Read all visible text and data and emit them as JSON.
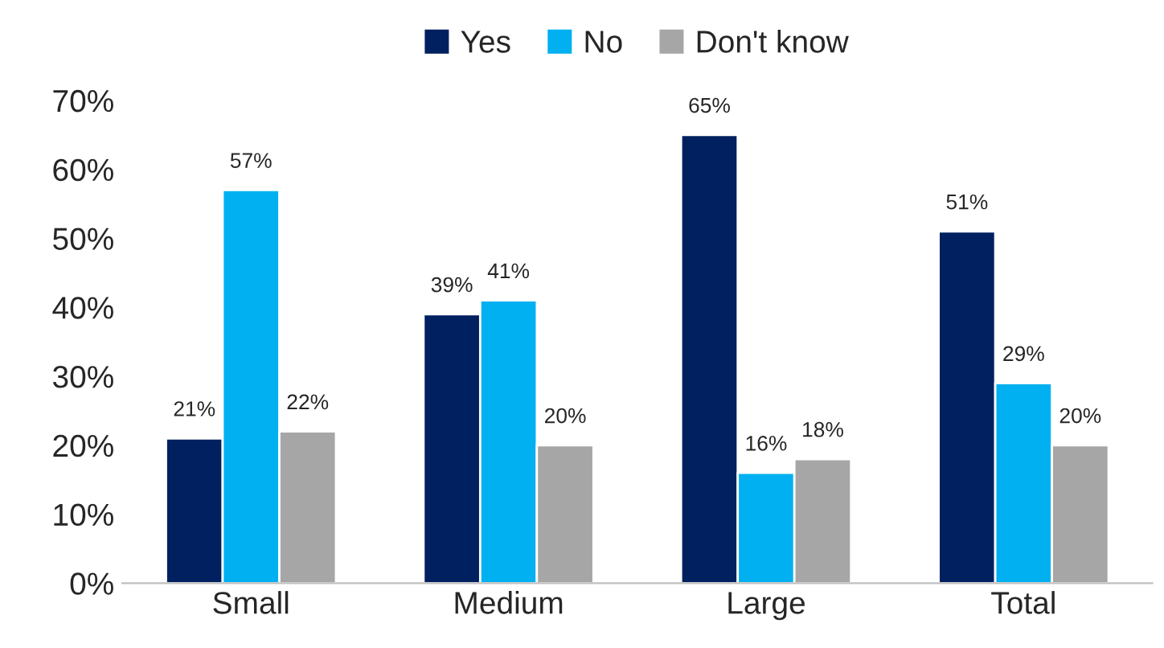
{
  "chart_data": {
    "type": "bar",
    "categories": [
      "Small",
      "Medium",
      "Large",
      "Total"
    ],
    "series": [
      {
        "name": "Yes",
        "color": "#002060",
        "values": [
          21,
          39,
          65,
          51
        ],
        "value_labels": [
          "21%",
          "39%",
          "65%",
          "51%"
        ]
      },
      {
        "name": "No",
        "color": "#00b0f0",
        "values": [
          57,
          41,
          16,
          29
        ],
        "value_labels": [
          "57%",
          "41%",
          "16%",
          "29%"
        ]
      },
      {
        "name": "Don't know",
        "color": "#a6a6a6",
        "values": [
          22,
          20,
          18,
          20
        ],
        "value_labels": [
          "22%",
          "20%",
          "18%",
          "20%"
        ]
      }
    ],
    "ylim": [
      0,
      70
    ],
    "yticks": [
      {
        "value": 0,
        "label": "0%"
      },
      {
        "value": 10,
        "label": "10%"
      },
      {
        "value": 20,
        "label": "20%"
      },
      {
        "value": 30,
        "label": "30%"
      },
      {
        "value": 40,
        "label": "40%"
      },
      {
        "value": 50,
        "label": "50%"
      },
      {
        "value": 60,
        "label": "60%"
      },
      {
        "value": 70,
        "label": "70%"
      }
    ],
    "grid": false,
    "legend": "top"
  }
}
